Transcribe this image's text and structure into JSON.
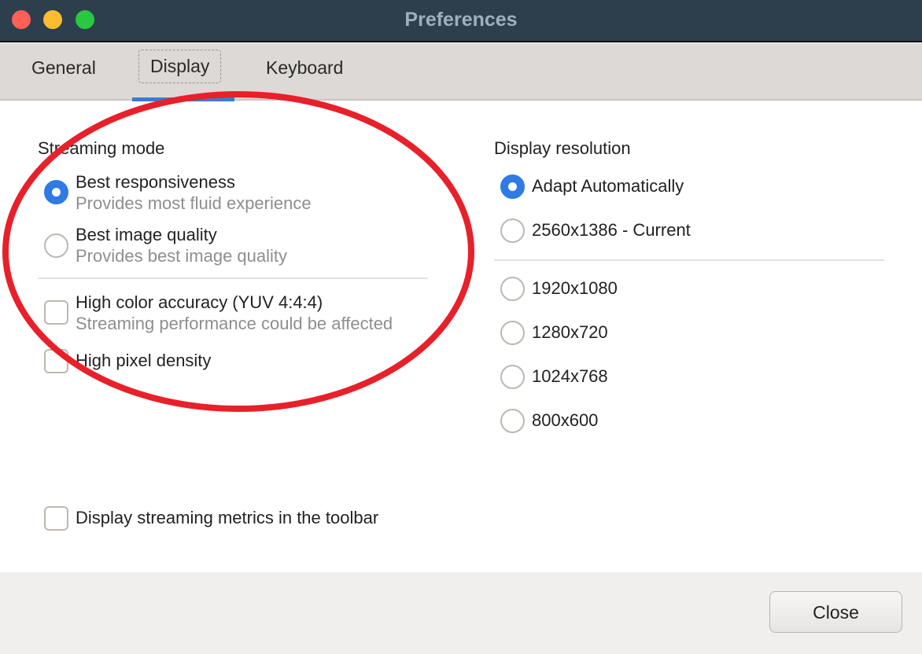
{
  "window": {
    "title": "Preferences"
  },
  "tabs": [
    {
      "label": "General"
    },
    {
      "label": "Display",
      "active": true
    },
    {
      "label": "Keyboard"
    }
  ],
  "streaming_mode": {
    "heading": "Streaming mode",
    "options": [
      {
        "label": "Best responsiveness",
        "description": "Provides most fluid experience",
        "selected": true
      },
      {
        "label": "Best image quality",
        "description": "Provides best image quality",
        "selected": false
      }
    ],
    "checkboxes": [
      {
        "label": "High color accuracy (YUV 4:4:4)",
        "description": "Streaming performance could be affected",
        "checked": false
      },
      {
        "label": "High pixel density",
        "checked": false
      }
    ]
  },
  "display_resolution": {
    "heading": "Display resolution",
    "options": [
      {
        "label": "Adapt Automatically",
        "selected": true
      },
      {
        "label": "2560x1386 - Current",
        "selected": false
      },
      {
        "label": "1920x1080",
        "selected": false
      },
      {
        "label": "1280x720",
        "selected": false
      },
      {
        "label": "1024x768",
        "selected": false
      },
      {
        "label": "800x600",
        "selected": false
      }
    ]
  },
  "metrics_checkbox": {
    "label": "Display streaming metrics in the toolbar",
    "checked": false
  },
  "footer": {
    "close_label": "Close"
  },
  "colors": {
    "accent": "#2f7ae5",
    "annotation": "#e8202a",
    "titlebar": "#2d3e4c"
  }
}
